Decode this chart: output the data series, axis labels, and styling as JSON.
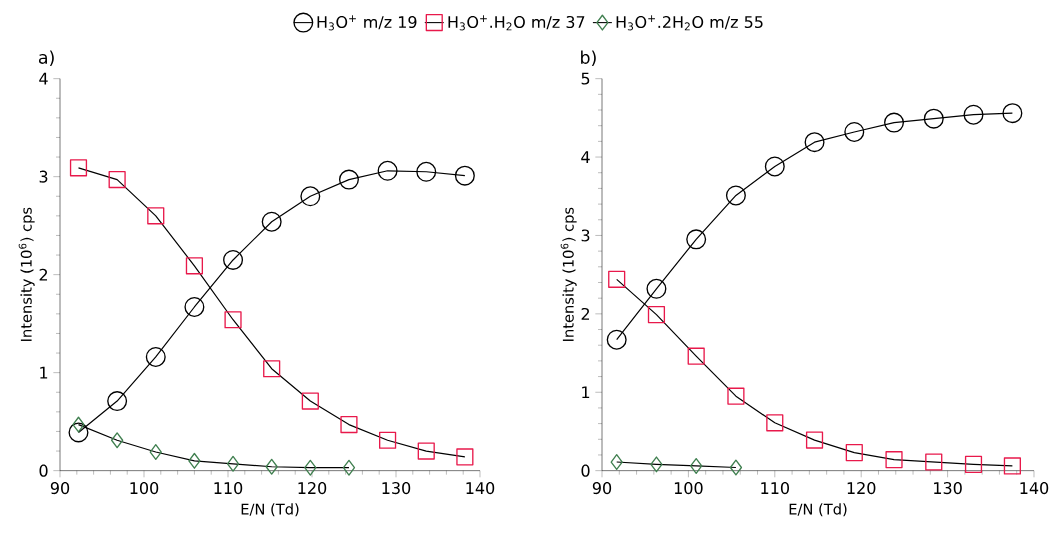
{
  "chart_data": [
    {
      "type": "line",
      "title": "a)",
      "xlabel": "E/N (Td)",
      "ylabel": "Intensity (10$^{6}$) cps",
      "xlim": [
        90,
        140
      ],
      "xticks": [
        90,
        100,
        110,
        120,
        130,
        140
      ],
      "ylim": [
        0,
        4
      ],
      "yticks": [
        0,
        1,
        2,
        3,
        4
      ],
      "legend": "top",
      "grid": false,
      "series": [
        {
          "name": "H$_{3}$O$^{+}$ m/z 19",
          "color": "#000000",
          "marker": "circle",
          "x": [
            92.2,
            96.8,
            101.4,
            106.0,
            110.6,
            115.2,
            119.8,
            124.4,
            129.0,
            133.6,
            138.2
          ],
          "values": [
            0.39,
            0.71,
            1.16,
            1.67,
            2.15,
            2.54,
            2.8,
            2.97,
            3.06,
            3.05,
            3.01
          ]
        },
        {
          "name": "H$_{3}$O$^{+}$.H$_{2}$O m/z 37",
          "color": "#e8194b",
          "marker": "square",
          "x": [
            92.2,
            96.8,
            101.4,
            106.0,
            110.6,
            115.2,
            119.8,
            124.4,
            129.0,
            133.6,
            138.2
          ],
          "values": [
            3.09,
            2.97,
            2.6,
            2.09,
            1.54,
            1.04,
            0.71,
            0.47,
            0.31,
            0.2,
            0.14
          ]
        },
        {
          "name": "H$_{3}$O$^{+}$.2H$_{2}$O m/z 55",
          "color": "#3f7f4f",
          "marker": "diamond",
          "x": [
            92.2,
            96.8,
            101.4,
            106.0,
            110.6,
            115.2,
            119.8,
            124.4
          ],
          "values": [
            0.47,
            0.31,
            0.19,
            0.1,
            0.07,
            0.04,
            0.03,
            0.03
          ]
        }
      ]
    },
    {
      "type": "line",
      "title": "b)",
      "xlabel": "E/N (Td)",
      "ylabel": "Intensity (10$^{6}$) cps",
      "xlim": [
        90,
        140
      ],
      "xticks": [
        90,
        100,
        110,
        120,
        130,
        140
      ],
      "ylim": [
        0,
        5
      ],
      "yticks": [
        0,
        1,
        2,
        3,
        4,
        5
      ],
      "grid": false,
      "series": [
        {
          "color": "#000000",
          "marker": "circle",
          "x": [
            91.7,
            96.3,
            100.9,
            105.5,
            110.0,
            114.6,
            119.2,
            123.8,
            128.4,
            133.0,
            137.5
          ],
          "values": [
            1.67,
            2.32,
            2.95,
            3.51,
            3.88,
            4.19,
            4.32,
            4.44,
            4.49,
            4.54,
            4.56
          ]
        },
        {
          "color": "#e8194b",
          "marker": "square",
          "x": [
            91.7,
            96.3,
            100.9,
            105.5,
            110.0,
            114.6,
            119.2,
            123.8,
            128.4,
            133.0,
            137.5
          ],
          "values": [
            2.44,
            1.99,
            1.46,
            0.95,
            0.61,
            0.39,
            0.23,
            0.14,
            0.11,
            0.08,
            0.06
          ]
        },
        {
          "color": "#3f7f4f",
          "marker": "diamond",
          "x": [
            91.7,
            96.3,
            100.9,
            105.5
          ],
          "values": [
            0.11,
            0.08,
            0.06,
            0.04
          ]
        }
      ]
    }
  ]
}
